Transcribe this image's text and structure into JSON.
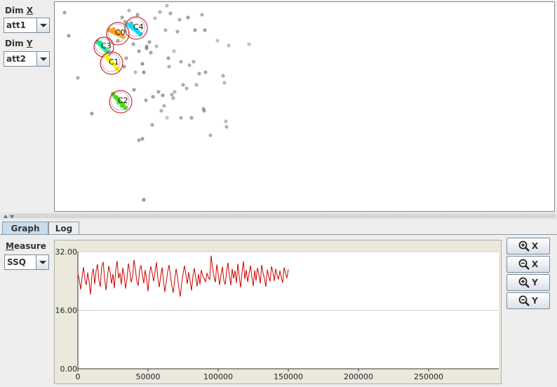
{
  "controls": {
    "dim_x_label": "Dim X",
    "dim_x_value": "att1",
    "dim_y_label": "Dim Y",
    "dim_y_value": "att2",
    "measure_label": "Measure",
    "measure_value": "SSQ"
  },
  "tabs": [
    {
      "label": "Graph",
      "selected": true
    },
    {
      "label": "Log",
      "selected": false
    }
  ],
  "zoom_buttons": [
    {
      "icon": "zoom-in-icon",
      "label": "X"
    },
    {
      "icon": "zoom-out-icon",
      "label": "X"
    },
    {
      "icon": "zoom-in-icon",
      "label": "Y"
    },
    {
      "icon": "zoom-out-icon",
      "label": "Y"
    }
  ],
  "clusters": [
    {
      "label": "C0",
      "color": "#ff9900"
    },
    {
      "label": "C4",
      "color": "#00d8ff"
    },
    {
      "label": "C3",
      "color": "#00e890"
    },
    {
      "label": "C1",
      "color": "#ffee00"
    },
    {
      "label": "C2",
      "color": "#44dd11"
    }
  ],
  "chart_data": {
    "type": "line",
    "series_color": "#cc0000",
    "ylim": [
      0,
      32
    ],
    "yticks": [
      "0.00",
      "16.00",
      "32.00"
    ],
    "xlim": [
      0,
      300000
    ],
    "xticks": [
      "0",
      "50000",
      "100000",
      "150000",
      "200000",
      "250000"
    ],
    "x_start": 0,
    "x_step": 1000,
    "values": [
      26.0,
      24.3,
      21.7,
      25.1,
      27.8,
      24.5,
      22.9,
      26.3,
      23.8,
      20.3,
      25.7,
      27.4,
      23.1,
      26.8,
      28.6,
      24.2,
      22.4,
      27.9,
      29.2,
      25.0,
      21.5,
      24.8,
      28.1,
      26.4,
      23.3,
      25.9,
      22.0,
      27.1,
      29.5,
      24.7,
      26.2,
      23.0,
      27.6,
      25.4,
      21.9,
      24.6,
      28.8,
      26.7,
      23.6,
      25.3,
      29.8,
      27.2,
      24.0,
      22.7,
      26.9,
      28.3,
      25.6,
      23.4,
      27.0,
      24.4,
      21.2,
      25.8,
      28.0,
      26.1,
      23.9,
      26.6,
      29.1,
      24.9,
      22.3,
      25.2,
      27.7,
      24.1,
      21.0,
      23.7,
      26.5,
      28.4,
      25.5,
      22.6,
      20.8,
      24.3,
      27.3,
      25.1,
      22.1,
      19.7,
      23.5,
      26.0,
      28.2,
      25.7,
      23.2,
      26.4,
      24.0,
      21.4,
      25.3,
      27.5,
      24.8,
      22.5,
      25.9,
      23.1,
      27.0,
      25.4,
      24.6,
      23.8,
      26.2,
      25.0,
      24.4,
      30.9,
      27.6,
      25.3,
      23.6,
      28.5,
      26.1,
      22.9,
      25.7,
      27.9,
      24.2,
      23.0,
      26.6,
      29.0,
      25.5,
      22.8,
      27.3,
      24.7,
      26.8,
      23.4,
      28.7,
      25.2,
      22.2,
      26.3,
      29.4,
      24.5,
      27.0,
      23.7,
      26.0,
      28.2,
      25.1,
      22.6,
      26.9,
      24.1,
      27.6,
      25.8,
      23.3,
      28.4,
      26.2,
      24.6,
      22.4,
      27.1,
      25.3,
      23.9,
      28.0,
      26.5,
      24.0,
      27.3,
      25.6,
      24.4,
      26.8,
      25.0,
      23.5,
      27.7,
      26.1,
      24.8,
      27.2
    ]
  }
}
